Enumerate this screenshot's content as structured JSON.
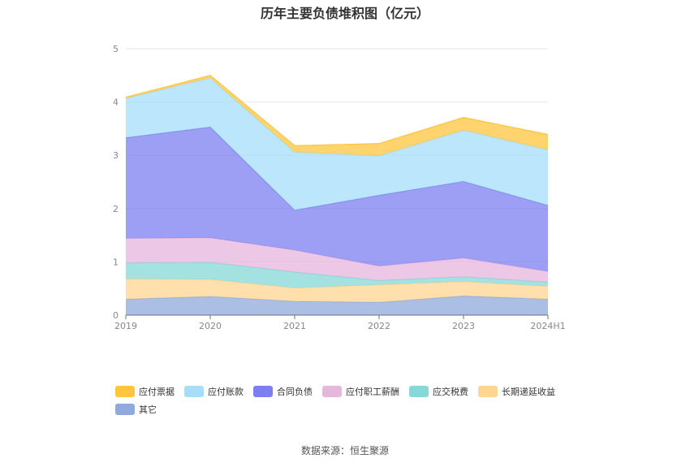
{
  "chart_data": {
    "type": "area",
    "stacked": true,
    "title": "历年主要负债堆积图（亿元）",
    "categories": [
      "2019",
      "2020",
      "2021",
      "2022",
      "2023",
      "2024H1"
    ],
    "yticks": [
      "0",
      "1",
      "2",
      "3",
      "4",
      "5"
    ],
    "ylim": [
      0,
      5
    ],
    "grid": true,
    "legend_position": "bottom-left",
    "series": [
      {
        "name": "其它",
        "color": "#8faadc",
        "values": [
          0.3,
          0.35,
          0.26,
          0.24,
          0.36,
          0.3
        ]
      },
      {
        "name": "长期递延收益",
        "color": "#ffd591",
        "values": [
          0.38,
          0.32,
          0.25,
          0.33,
          0.27,
          0.24
        ]
      },
      {
        "name": "应交税费",
        "color": "#86d8d8",
        "values": [
          0.3,
          0.32,
          0.3,
          0.08,
          0.09,
          0.08
        ]
      },
      {
        "name": "应付职工薪酬",
        "color": "#e7b6dd",
        "values": [
          0.46,
          0.46,
          0.41,
          0.27,
          0.35,
          0.2
        ]
      },
      {
        "name": "合同负债",
        "color": "#7b7ff0",
        "values": [
          1.89,
          2.08,
          0.75,
          1.33,
          1.44,
          1.24
        ]
      },
      {
        "name": "应付账款",
        "color": "#a6defa",
        "values": [
          0.74,
          0.92,
          1.09,
          0.74,
          0.96,
          1.04
        ]
      },
      {
        "name": "应付票据",
        "color": "#ffc53d",
        "values": [
          0.02,
          0.05,
          0.12,
          0.23,
          0.24,
          0.29
        ]
      }
    ],
    "legend_order": [
      "应付票据",
      "应付账款",
      "合同负债",
      "应付职工薪酬",
      "应交税费",
      "长期递延收益",
      "其它"
    ]
  },
  "source_text": "数据来源：恒生聚源"
}
